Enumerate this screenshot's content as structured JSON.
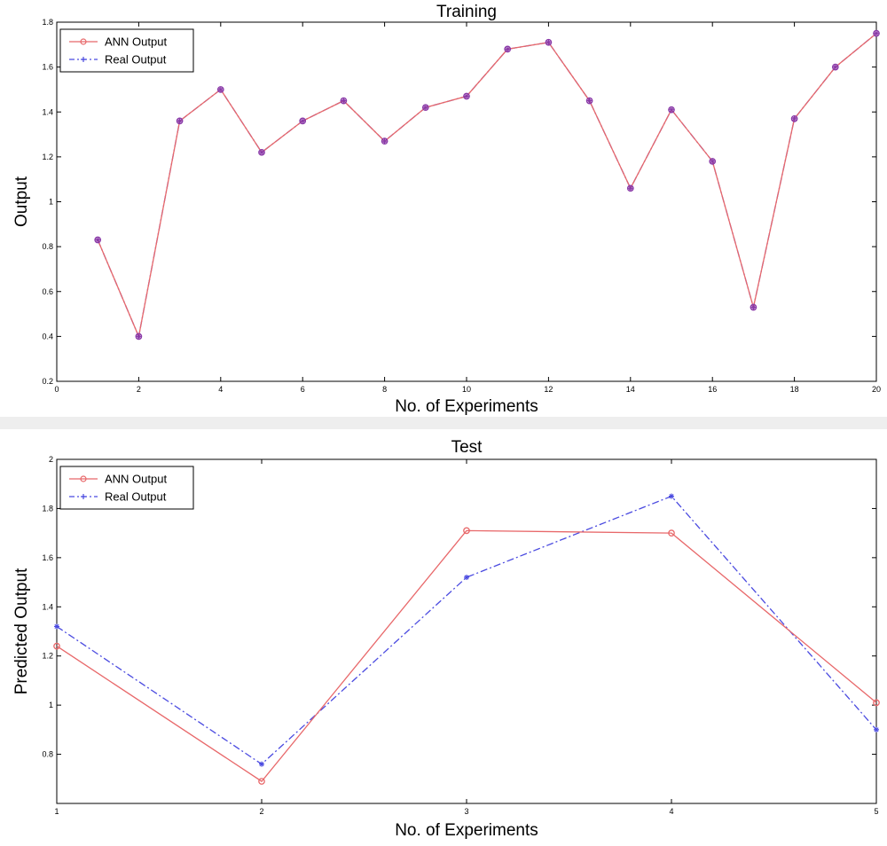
{
  "colors": {
    "ann": "#e8686a",
    "real": "#4a4ae0",
    "marker": "#8a3aa8",
    "axis": "#000000",
    "background": "#ffffff"
  },
  "chart_data": [
    {
      "type": "line",
      "title": "Training",
      "xlabel": "No. of Experiments",
      "ylabel": "Output",
      "xlim": [
        0,
        20
      ],
      "ylim": [
        0.2,
        1.8
      ],
      "xticks": [
        0,
        2,
        4,
        6,
        8,
        10,
        12,
        14,
        16,
        18,
        20
      ],
      "xtick_labels": [
        "0",
        "2",
        "4",
        "6",
        "8",
        "10",
        "12",
        "14",
        "16",
        "18",
        "20"
      ],
      "yticks": [
        0.2,
        0.4,
        0.6,
        0.8,
        1.0,
        1.2,
        1.4,
        1.6,
        1.8
      ],
      "ytick_labels": [
        "0.2",
        "0.4",
        "0.6",
        "0.8",
        "1",
        "1.2",
        "1.4",
        "1.6",
        "1.8"
      ],
      "grid": false,
      "legend_position": "top-left",
      "x": [
        1,
        2,
        3,
        4,
        5,
        6,
        7,
        8,
        9,
        10,
        11,
        12,
        13,
        14,
        15,
        16,
        17,
        18,
        19,
        20
      ],
      "series": [
        {
          "name": "ANN Output",
          "style": "solid",
          "marker": "circle",
          "color": "#e8686a",
          "values": [
            0.83,
            0.4,
            1.36,
            1.5,
            1.22,
            1.36,
            1.45,
            1.27,
            1.42,
            1.47,
            1.68,
            1.71,
            1.45,
            1.06,
            1.41,
            1.18,
            0.53,
            1.37,
            1.6,
            1.75
          ]
        },
        {
          "name": "Real Output",
          "style": "dashdot",
          "marker": "star",
          "color": "#4a4ae0",
          "values": [
            0.83,
            0.4,
            1.36,
            1.5,
            1.22,
            1.36,
            1.45,
            1.27,
            1.42,
            1.47,
            1.68,
            1.71,
            1.45,
            1.06,
            1.41,
            1.18,
            0.53,
            1.37,
            1.6,
            1.75
          ]
        }
      ]
    },
    {
      "type": "line",
      "title": "Test",
      "xlabel": "No. of Experiments",
      "ylabel": "Predicted Output",
      "xlim": [
        1,
        5
      ],
      "ylim": [
        0.6,
        2.0
      ],
      "xticks": [
        1,
        2,
        3,
        4,
        5
      ],
      "xtick_labels": [
        "1",
        "2",
        "3",
        "4",
        "5"
      ],
      "yticks": [
        0.8,
        1.0,
        1.2,
        1.4,
        1.6,
        1.8,
        2.0
      ],
      "ytick_labels": [
        "0.8",
        "1",
        "1.2",
        "1.4",
        "1.6",
        "1.8",
        "2"
      ],
      "grid": false,
      "legend_position": "top-left",
      "x": [
        1,
        2,
        3,
        4,
        5
      ],
      "series": [
        {
          "name": "ANN Output",
          "style": "solid",
          "marker": "circle",
          "color": "#e8686a",
          "values": [
            1.24,
            0.69,
            1.71,
            1.7,
            1.01
          ]
        },
        {
          "name": "Real Output",
          "style": "dashdot",
          "marker": "star",
          "color": "#4a4ae0",
          "values": [
            1.32,
            0.76,
            1.52,
            1.85,
            0.9
          ]
        }
      ]
    }
  ]
}
